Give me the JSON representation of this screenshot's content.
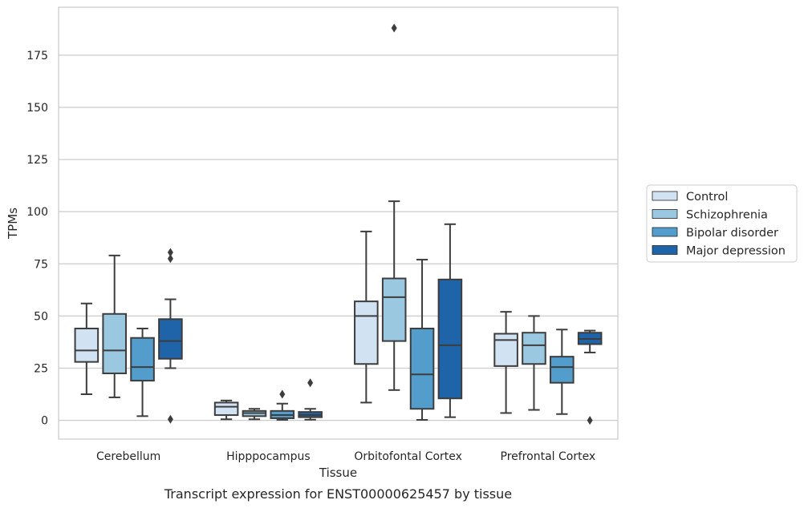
{
  "caption": "Transcript expression for ENST00000625457 by tissue",
  "chart_data": {
    "type": "box",
    "xlabel": "Tissue",
    "ylabel": "TPMs",
    "ylim": [
      -9,
      198
    ],
    "yticks": [
      0,
      25,
      50,
      75,
      100,
      125,
      150,
      175
    ],
    "grid": "horizontal",
    "legend_position": "right",
    "categories": [
      "Cerebellum",
      "Hipppocampus",
      "Orbitofontal Cortex",
      "Prefrontal Cortex"
    ],
    "series": [
      {
        "name": "Control",
        "color": "#d1e2f2",
        "boxes": [
          {
            "whisker_low": 12.5,
            "q1": 28,
            "median": 33.5,
            "q3": 44,
            "whisker_high": 56,
            "outliers": []
          },
          {
            "whisker_low": 0.5,
            "q1": 2.5,
            "median": 6.5,
            "q3": 8.5,
            "whisker_high": 9.5,
            "outliers": []
          },
          {
            "whisker_low": 8.5,
            "q1": 27,
            "median": 50,
            "q3": 57,
            "whisker_high": 90.5,
            "outliers": []
          },
          {
            "whisker_low": 3.5,
            "q1": 26,
            "median": 38.5,
            "q3": 41.5,
            "whisker_high": 52,
            "outliers": []
          }
        ]
      },
      {
        "name": "Schizophrenia",
        "color": "#9ac8e0",
        "boxes": [
          {
            "whisker_low": 11,
            "q1": 22.5,
            "median": 33.5,
            "q3": 51,
            "whisker_high": 79,
            "outliers": []
          },
          {
            "whisker_low": 0.5,
            "q1": 2,
            "median": 3.5,
            "q3": 4.5,
            "whisker_high": 5.5,
            "outliers": []
          },
          {
            "whisker_low": 14.5,
            "q1": 38,
            "median": 59,
            "q3": 68,
            "whisker_high": 105,
            "outliers": [
              188
            ]
          },
          {
            "whisker_low": 5,
            "q1": 27,
            "median": 36,
            "q3": 42,
            "whisker_high": 50,
            "outliers": []
          }
        ]
      },
      {
        "name": "Bipolar disorder",
        "color": "#529dcc",
        "boxes": [
          {
            "whisker_low": 2,
            "q1": 19,
            "median": 25.5,
            "q3": 39.5,
            "whisker_high": 44,
            "outliers": []
          },
          {
            "whisker_low": 0.2,
            "q1": 1,
            "median": 2.5,
            "q3": 4.5,
            "whisker_high": 8,
            "outliers": [
              12.5
            ]
          },
          {
            "whisker_low": 0.2,
            "q1": 5.5,
            "median": 22,
            "q3": 44,
            "whisker_high": 77,
            "outliers": []
          },
          {
            "whisker_low": 3,
            "q1": 18,
            "median": 25.5,
            "q3": 30.5,
            "whisker_high": 43.5,
            "outliers": []
          }
        ]
      },
      {
        "name": "Major depression",
        "color": "#1f63a8",
        "boxes": [
          {
            "whisker_low": 25,
            "q1": 29.5,
            "median": 38,
            "q3": 48.5,
            "whisker_high": 58,
            "outliers": [
              80.5,
              77.5,
              0.5
            ]
          },
          {
            "whisker_low": 0.3,
            "q1": 1.5,
            "median": 2.5,
            "q3": 4,
            "whisker_high": 5.5,
            "outliers": [
              18
            ]
          },
          {
            "whisker_low": 1.5,
            "q1": 10.5,
            "median": 36,
            "q3": 67.5,
            "whisker_high": 94,
            "outliers": []
          },
          {
            "whisker_low": 32.5,
            "q1": 36.5,
            "median": 39,
            "q3": 42,
            "whisker_high": 43,
            "outliers": [
              0
            ]
          }
        ]
      }
    ]
  }
}
